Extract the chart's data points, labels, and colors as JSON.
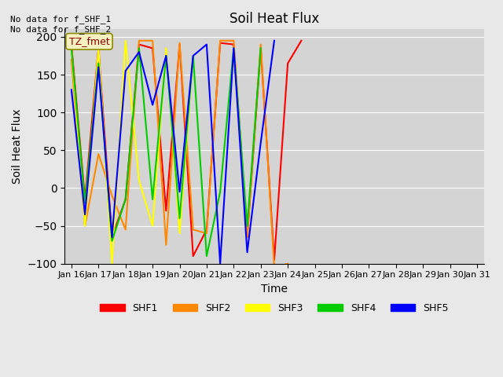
{
  "title": "Soil Heat Flux",
  "xlabel": "Time",
  "ylabel": "Soil Heat Flux",
  "ylim": [
    -100,
    210
  ],
  "yticks": [
    -100,
    -50,
    0,
    50,
    100,
    150,
    200
  ],
  "annotation_text": "No data for f_SHF_1\nNo data for f_SHF_2",
  "tz_label": "TZ_fmet",
  "fig_facecolor": "#e8e8e8",
  "plot_bg_color": "#d4d4d4",
  "series_colors": {
    "SHF1": "#ff0000",
    "SHF2": "#ff8800",
    "SHF3": "#ffff00",
    "SHF4": "#00cc00",
    "SHF5": "#0000ff"
  },
  "x_labels": [
    "Jan 16",
    "Jan 17",
    "Jan 18",
    "Jan 19",
    "Jan 20",
    "Jan 21",
    "Jan 22",
    "Jan 23",
    "Jan 24",
    "Jan 25",
    "Jan 26",
    "Jan 27",
    "Jan 28",
    "Jan 29",
    "Jan 30",
    "Jan 31"
  ],
  "x_tick_positions": [
    0,
    2,
    4,
    6,
    8,
    10,
    12,
    14,
    16,
    18,
    20,
    22,
    24,
    26,
    28,
    30
  ],
  "SHF1": [
    190,
    -15,
    185,
    -65,
    -15,
    190,
    185,
    -30,
    190,
    -90,
    -55,
    192,
    190,
    -65,
    185,
    -95,
    165,
    195,
    null,
    null,
    null,
    null,
    null,
    null,
    null,
    null,
    null,
    null,
    null,
    null,
    null
  ],
  "SHF2": [
    170,
    -50,
    45,
    -10,
    -55,
    195,
    195,
    -75,
    192,
    -55,
    -60,
    195,
    195,
    -65,
    190,
    -105,
    -100,
    null,
    null,
    null,
    null,
    null,
    null,
    null,
    null,
    null,
    null,
    null,
    null,
    null,
    null
  ],
  "SHF3": [
    185,
    -50,
    185,
    -100,
    195,
    10,
    -50,
    185,
    -60,
    175,
    null,
    null,
    null,
    null,
    null,
    null,
    null,
    null,
    null,
    null,
    null,
    null,
    null,
    null,
    null,
    null,
    null,
    null,
    null,
    null,
    null
  ],
  "SHF4": [
    185,
    -20,
    165,
    -70,
    -15,
    185,
    -15,
    175,
    -40,
    175,
    -90,
    -5,
    185,
    -50,
    185,
    null,
    null,
    null,
    null,
    null,
    null,
    null,
    null,
    null,
    null,
    null,
    null,
    null,
    null,
    null,
    null
  ],
  "SHF5": [
    130,
    -35,
    160,
    -65,
    155,
    180,
    110,
    175,
    -5,
    175,
    190,
    -100,
    185,
    -85,
    60,
    195,
    null,
    null,
    null,
    null,
    null,
    null,
    null,
    null,
    null,
    null,
    null,
    null,
    null,
    null,
    null
  ],
  "SHF1_x": [
    0,
    1,
    2,
    3,
    4,
    5,
    6,
    7,
    8,
    9,
    10,
    11,
    12,
    13,
    14,
    15,
    16,
    17
  ],
  "SHF2_x": [
    0,
    1,
    2,
    3,
    4,
    5,
    6,
    7,
    8,
    9,
    10,
    11,
    12,
    13,
    14,
    15,
    16
  ],
  "SHF3_x": [
    0,
    1,
    2,
    3,
    4,
    5,
    6,
    7,
    8,
    9
  ],
  "SHF4_x": [
    0,
    1,
    2,
    3,
    4,
    5,
    6,
    7,
    8,
    9,
    10,
    11,
    12,
    13,
    14
  ],
  "SHF5_x": [
    0,
    1,
    2,
    3,
    4,
    5,
    6,
    7,
    8,
    9,
    10,
    11,
    12,
    13,
    14,
    15
  ],
  "SHF1_y": [
    190,
    -15,
    185,
    -65,
    -15,
    190,
    185,
    -30,
    190,
    -90,
    -55,
    192,
    190,
    -65,
    185,
    -95,
    165,
    195
  ],
  "SHF2_y": [
    170,
    -50,
    45,
    -10,
    -55,
    195,
    195,
    -75,
    192,
    -55,
    -60,
    195,
    195,
    -65,
    190,
    -105,
    -100
  ],
  "SHF3_y": [
    185,
    -50,
    185,
    -100,
    195,
    10,
    -50,
    185,
    -60,
    175
  ],
  "SHF4_y": [
    185,
    -20,
    165,
    -70,
    -15,
    185,
    -15,
    175,
    -40,
    175,
    -90,
    -5,
    185,
    -50,
    185
  ],
  "SHF5_y": [
    130,
    -35,
    160,
    -65,
    155,
    180,
    110,
    175,
    -5,
    175,
    190,
    -100,
    185,
    -85,
    60,
    195
  ]
}
